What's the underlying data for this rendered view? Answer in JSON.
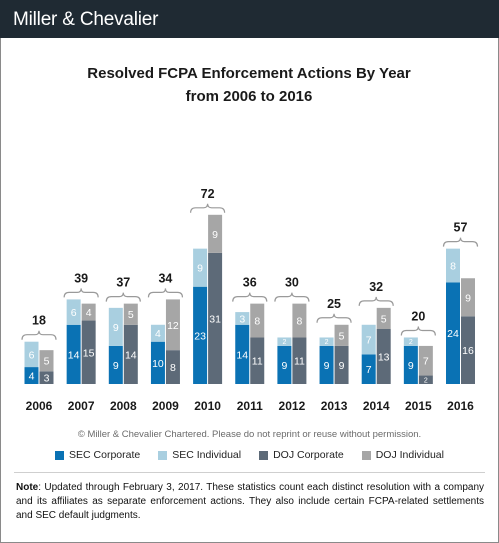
{
  "header": {
    "logo_text": "Miller & Chevalier",
    "background": "#1f2a33"
  },
  "copyright": "© Miller & Chevalier Chartered. Please do not reprint or reuse without permission.",
  "note": {
    "label": "Note",
    "text": ": Updated through February 3, 2017. These statistics count each distinct resolution with a company and its affiliates as separate enforcement actions. They also include certain FCPA-related settlements and SEC default judgments."
  },
  "colors": {
    "sec_corporate": "#0a72b4",
    "sec_individual": "#a9cfe0",
    "doj_corporate": "#5d6a78",
    "doj_individual": "#a6a6a6"
  },
  "chart_data": {
    "type": "bar",
    "stacked": "grouped-stacked",
    "title": "Resolved FCPA Enforcement Actions By Year",
    "subtitle": "from 2006 to 2016",
    "categories": [
      "2006",
      "2007",
      "2008",
      "2009",
      "2010",
      "2011",
      "2012",
      "2013",
      "2014",
      "2015",
      "2016"
    ],
    "totals": [
      18,
      39,
      37,
      34,
      72,
      36,
      30,
      25,
      32,
      20,
      57
    ],
    "series": [
      {
        "name": "SEC Corporate",
        "stack": "SEC",
        "values": [
          4,
          14,
          9,
          10,
          23,
          14,
          9,
          9,
          7,
          9,
          24
        ]
      },
      {
        "name": "SEC Individual",
        "stack": "SEC",
        "values": [
          6,
          6,
          9,
          4,
          9,
          3,
          2,
          2,
          7,
          2,
          8
        ]
      },
      {
        "name": "DOJ Corporate",
        "stack": "DOJ",
        "values": [
          3,
          15,
          14,
          8,
          31,
          11,
          11,
          9,
          13,
          2,
          16
        ]
      },
      {
        "name": "DOJ Individual",
        "stack": "DOJ",
        "values": [
          5,
          4,
          5,
          12,
          9,
          8,
          8,
          5,
          5,
          7,
          9
        ]
      }
    ],
    "legend_position": "bottom",
    "grid": false,
    "y_axis_visible": false
  }
}
